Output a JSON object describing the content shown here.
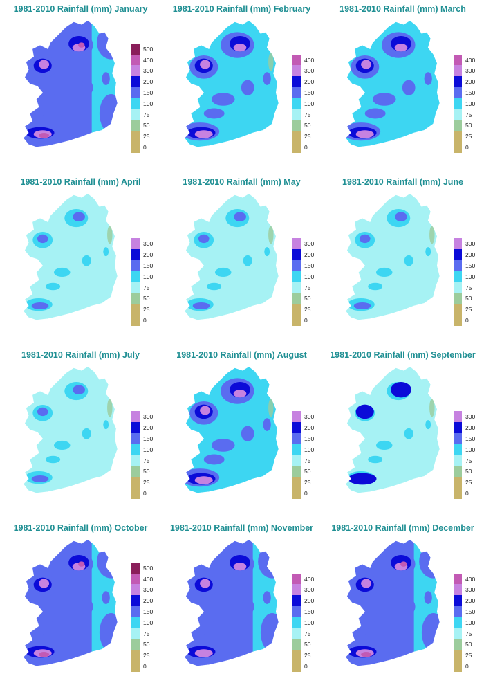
{
  "palette": {
    "0": "#c8b46a",
    "25": "#9ccc9c",
    "50": "#a6f2f4",
    "75": "#3dd6f2",
    "100": "#5a6cf0",
    "150": "#0b0bd8",
    "200": "#c682e0",
    "300": "#c25ab4",
    "400": "#8a1e5a"
  },
  "panels": [
    {
      "title": "1981-2010 Rainfall (mm) January",
      "legend": [
        "0",
        "25",
        "50",
        "75",
        "100",
        "150",
        "200",
        "300",
        "400",
        "500"
      ],
      "intensity": 5
    },
    {
      "title": "1981-2010 Rainfall (mm) February",
      "legend": [
        "0",
        "25",
        "50",
        "75",
        "100",
        "150",
        "200",
        "300",
        "400"
      ],
      "intensity": 3
    },
    {
      "title": "1981-2010 Rainfall (mm) March",
      "legend": [
        "0",
        "25",
        "50",
        "75",
        "100",
        "150",
        "200",
        "300",
        "400"
      ],
      "intensity": 3.5
    },
    {
      "title": "1981-2010 Rainfall (mm) April",
      "legend": [
        "0",
        "25",
        "50",
        "75",
        "100",
        "150",
        "200",
        "300"
      ],
      "intensity": 1.5
    },
    {
      "title": "1981-2010 Rainfall (mm) May",
      "legend": [
        "0",
        "25",
        "50",
        "75",
        "100",
        "150",
        "200",
        "300"
      ],
      "intensity": 1.5
    },
    {
      "title": "1981-2010 Rainfall (mm) June",
      "legend": [
        "0",
        "25",
        "50",
        "75",
        "100",
        "150",
        "200",
        "300"
      ],
      "intensity": 1.5
    },
    {
      "title": "1981-2010 Rainfall (mm) July",
      "legend": [
        "0",
        "25",
        "50",
        "75",
        "100",
        "150",
        "200",
        "300"
      ],
      "intensity": 2
    },
    {
      "title": "1981-2010 Rainfall (mm) August",
      "legend": [
        "0",
        "25",
        "50",
        "75",
        "100",
        "150",
        "200",
        "300"
      ],
      "intensity": 3
    },
    {
      "title": "1981-2010 Rainfall (mm) September",
      "legend": [
        "0",
        "25",
        "50",
        "75",
        "100",
        "150",
        "200",
        "300"
      ],
      "intensity": 2.5
    },
    {
      "title": "1981-2010 Rainfall (mm) October",
      "legend": [
        "0",
        "25",
        "50",
        "75",
        "100",
        "150",
        "200",
        "300",
        "400",
        "500"
      ],
      "intensity": 4.5
    },
    {
      "title": "1981-2010 Rainfall (mm) November",
      "legend": [
        "0",
        "25",
        "50",
        "75",
        "100",
        "150",
        "200",
        "300",
        "400"
      ],
      "intensity": 4
    },
    {
      "title": "1981-2010 Rainfall (mm) December",
      "legend": [
        "0",
        "25",
        "50",
        "75",
        "100",
        "150",
        "200",
        "300",
        "400"
      ],
      "intensity": 4.5
    }
  ]
}
